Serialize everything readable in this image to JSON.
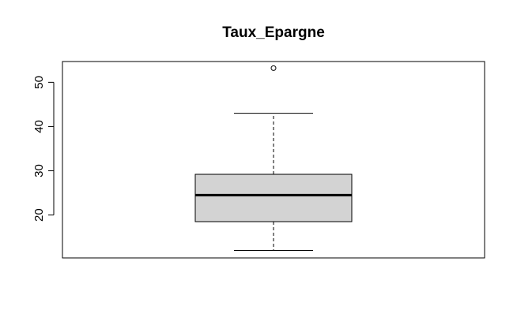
{
  "chart_data": {
    "type": "boxplot",
    "title": "Taux_Epargne",
    "xlabel": "",
    "ylabel": "",
    "ylim": [
      10.3,
      54.7
    ],
    "yticks": [
      20,
      30,
      40,
      50
    ],
    "grid": false,
    "legend": "none",
    "boxes": [
      {
        "whisker_low": 12.0,
        "q1": 18.5,
        "median": 24.5,
        "q3": 29.2,
        "whisker_high": 43.0,
        "outliers": [
          53.2
        ]
      }
    ],
    "colors": {
      "box_fill": "#d3d3d3",
      "stroke": "#000000",
      "background": "#ffffff"
    }
  }
}
